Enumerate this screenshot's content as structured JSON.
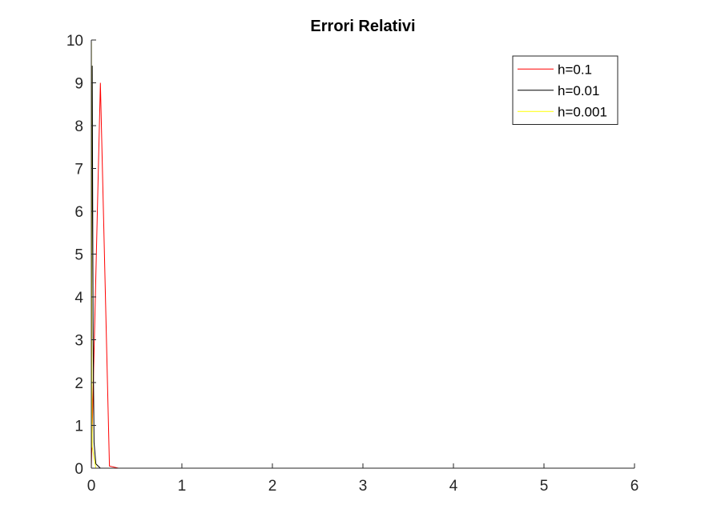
{
  "chart_data": {
    "type": "line",
    "title": "Errori Relativi",
    "xlabel": "",
    "ylabel": "",
    "xlim": [
      0,
      6
    ],
    "ylim": [
      0,
      10
    ],
    "xticks": [
      "0",
      "1",
      "2",
      "3",
      "4",
      "5",
      "6"
    ],
    "yticks": [
      "0",
      "1",
      "2",
      "3",
      "4",
      "5",
      "6",
      "7",
      "8",
      "9",
      "10"
    ],
    "grid": false,
    "legend_position": "top-right",
    "series": [
      {
        "name": "h=0.1",
        "color": "#ff0000",
        "x": [
          0,
          0.1,
          0.2,
          0.3,
          1,
          2,
          3,
          4,
          5,
          6
        ],
        "y": [
          0,
          9.0,
          0.05,
          0,
          0,
          0,
          0,
          0,
          0,
          0
        ]
      },
      {
        "name": "h=0.01",
        "color": "#000000",
        "x": [
          0,
          0.01,
          0.02,
          0.03,
          0.05,
          0.1,
          1,
          2,
          3,
          4,
          5,
          6
        ],
        "y": [
          0,
          9.4,
          3.0,
          0.6,
          0.1,
          0,
          0,
          0,
          0,
          0,
          0,
          0
        ]
      },
      {
        "name": "h=0.001",
        "color": "#ffff00",
        "x": [
          0,
          0.001,
          0.005,
          0.01,
          0.05,
          1,
          2,
          3,
          4,
          5,
          6
        ],
        "y": [
          0,
          9.95,
          3.0,
          0.5,
          0,
          0,
          0,
          0,
          0,
          0,
          0
        ]
      }
    ]
  }
}
